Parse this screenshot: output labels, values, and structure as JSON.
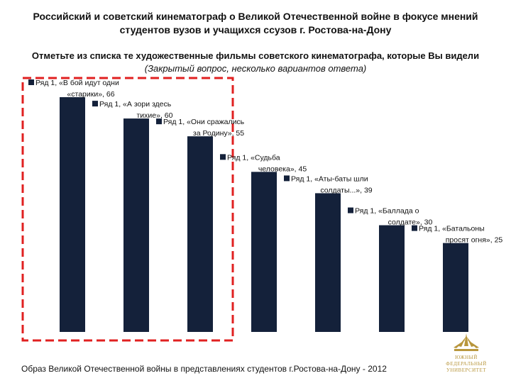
{
  "header": {
    "title": "Российский и советский кинематограф о Великой Отечественной войне в фокусе мнений студентов вузов и учащихся ссузов г. Ростова-на-Дону",
    "question_main": "Отметьте из списка те художественные фильмы советского кинематографа, которые Вы видели",
    "question_note": "(Закрытый вопрос, несколько вариантов ответа)"
  },
  "footer": {
    "caption": "Образ Великой Отечественной войны в представлениях студентов г.Ростова-на-Дону - 2012"
  },
  "logo": {
    "line1": "ЮЖНЫЙ",
    "line2": "ФЕДЕРАЛЬНЫЙ",
    "line3": "УНИВЕРСИТЕТ",
    "color": "#b8963c"
  },
  "colors": {
    "bar": "#14213a",
    "highlight_box": "#e02020"
  },
  "chart_data": {
    "type": "bar",
    "series_name": "Ряд 1",
    "categories": [
      "«В бой идут одни «старики»",
      "«А зори здесь тихие»",
      "«Они сражались за Родину»",
      "«Судьба человека»",
      "«Аты-баты шли солдаты...»",
      "«Баллада о солдате»",
      "«Батальоны просят огня»"
    ],
    "values": [
      66,
      60,
      55,
      45,
      39,
      30,
      25
    ],
    "labels": [
      [
        "Ряд 1, «В бой идут одни",
        "«старики», 66"
      ],
      [
        "Ряд 1, «А зори здесь",
        "тихие», 60"
      ],
      [
        "Ряд 1, «Они сражались",
        "за Родину», 55"
      ],
      [
        "Ряд 1, «Судьба",
        "человека», 45"
      ],
      [
        "Ряд 1, «Аты-баты шли",
        "солдаты...», 39"
      ],
      [
        "Ряд 1, «Баллада о",
        "солдате», 30"
      ],
      [
        "Ряд 1, «Батальоны",
        "просят огня», 25"
      ]
    ],
    "highlighted_categories": [
      0,
      1,
      2
    ],
    "legend": "none",
    "grid": false,
    "ylim": [
      0,
      66
    ]
  }
}
